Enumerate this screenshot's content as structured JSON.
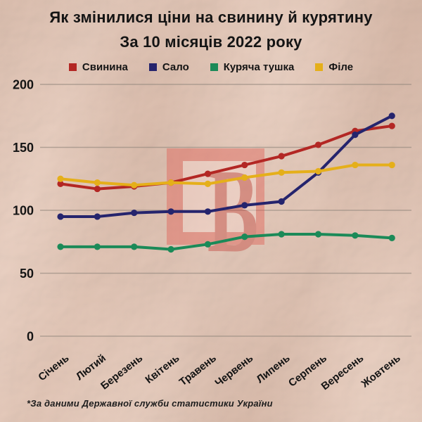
{
  "title": {
    "line1": "Як змінилися ціни на свинину й курятину",
    "line2": "За 10 місяців 2022 року"
  },
  "chart_data": {
    "type": "line",
    "title": "Як змінилися ціни на свинину й курятину за 10 місяців 2022 року",
    "categories": [
      "Січень",
      "Лютий",
      "Березень",
      "Квітень",
      "Травень",
      "Червень",
      "Липень",
      "Серпень",
      "Вересень",
      "Жовтень"
    ],
    "series": [
      {
        "name": "Свинина",
        "color": "#b32724",
        "values": [
          121,
          117,
          119,
          122,
          129,
          136,
          143,
          152,
          163,
          167
        ]
      },
      {
        "name": "Сало",
        "color": "#25246d",
        "values": [
          95,
          95,
          98,
          99,
          99,
          104,
          107,
          130,
          160,
          175
        ]
      },
      {
        "name": "Куряча тушка",
        "color": "#1b8a58",
        "values": [
          71,
          71,
          71,
          69,
          73,
          79,
          81,
          81,
          80,
          78
        ]
      },
      {
        "name": "Філе",
        "color": "#e5af1a",
        "values": [
          125,
          122,
          120,
          122,
          121,
          126,
          130,
          131,
          136,
          136
        ]
      }
    ],
    "ylim": [
      0,
      200
    ],
    "yticks": [
      0,
      50,
      100,
      150,
      200
    ],
    "grid": true,
    "legend_position": "top",
    "x_tick_rotation": -38
  },
  "watermark": {
    "letter": "B"
  },
  "footer": {
    "source_note": "*За даними Державної служби статистики України"
  },
  "colors": {
    "background": "#e2c4b4",
    "text": "#141414",
    "gridline": "#95897f",
    "watermark_red": "#c4423a",
    "watermark_inner": "#fbeee6"
  }
}
